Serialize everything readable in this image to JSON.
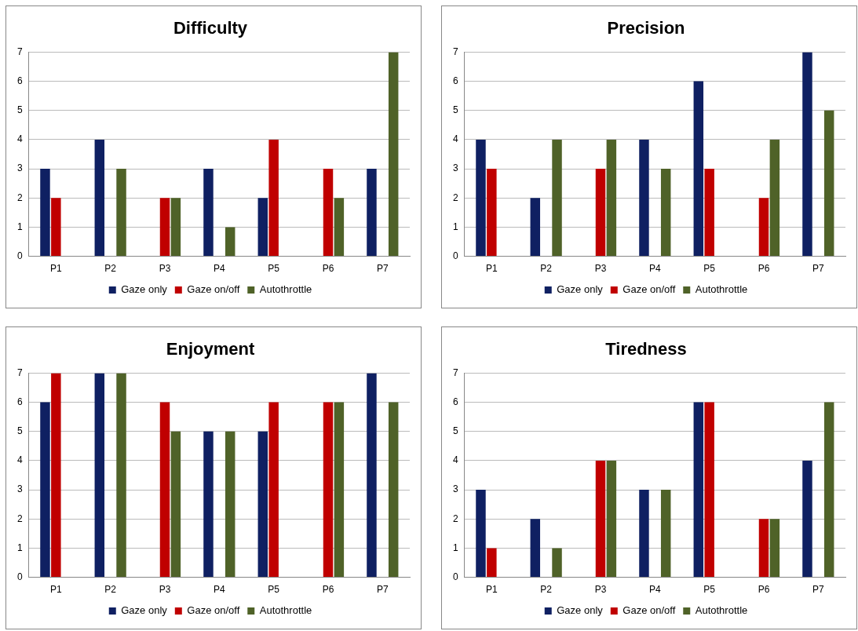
{
  "chart_data": [
    {
      "type": "bar",
      "title": "Difficulty",
      "categories": [
        "P1",
        "P2",
        "P3",
        "P4",
        "P5",
        "P6",
        "P7"
      ],
      "series": [
        {
          "name": "Gaze only",
          "color": "#0f2062",
          "values": [
            3,
            4,
            null,
            3,
            2,
            null,
            3
          ]
        },
        {
          "name": "Gaze on/off",
          "color": "#c00000",
          "values": [
            2,
            null,
            2,
            null,
            4,
            3,
            null
          ]
        },
        {
          "name": "Autothrottle",
          "color": "#4f6228",
          "values": [
            null,
            3,
            2,
            1,
            null,
            2,
            7
          ]
        }
      ],
      "ylim": [
        0,
        7
      ],
      "yticks": [
        0,
        1,
        2,
        3,
        4,
        5,
        6,
        7
      ],
      "grid": "y",
      "legend": "bottom"
    },
    {
      "type": "bar",
      "title": "Precision",
      "categories": [
        "P1",
        "P2",
        "P3",
        "P4",
        "P5",
        "P6",
        "P7"
      ],
      "series": [
        {
          "name": "Gaze only",
          "color": "#0f2062",
          "values": [
            4,
            2,
            null,
            4,
            6,
            null,
            7
          ]
        },
        {
          "name": "Gaze on/off",
          "color": "#c00000",
          "values": [
            3,
            null,
            3,
            null,
            3,
            2,
            null
          ]
        },
        {
          "name": "Autothrottle",
          "color": "#4f6228",
          "values": [
            null,
            4,
            4,
            3,
            null,
            4,
            5
          ]
        }
      ],
      "ylim": [
        0,
        7
      ],
      "yticks": [
        0,
        1,
        2,
        3,
        4,
        5,
        6,
        7
      ],
      "grid": "y",
      "legend": "bottom"
    },
    {
      "type": "bar",
      "title": "Enjoyment",
      "categories": [
        "P1",
        "P2",
        "P3",
        "P4",
        "P5",
        "P6",
        "P7"
      ],
      "series": [
        {
          "name": "Gaze only",
          "color": "#0f2062",
          "values": [
            6,
            7,
            null,
            5,
            5,
            null,
            7
          ]
        },
        {
          "name": "Gaze on/off",
          "color": "#c00000",
          "values": [
            7,
            null,
            6,
            null,
            6,
            6,
            null
          ]
        },
        {
          "name": "Autothrottle",
          "color": "#4f6228",
          "values": [
            null,
            7,
            5,
            5,
            null,
            6,
            6
          ]
        }
      ],
      "ylim": [
        0,
        7
      ],
      "yticks": [
        0,
        1,
        2,
        3,
        4,
        5,
        6,
        7
      ],
      "grid": "y",
      "legend": "bottom"
    },
    {
      "type": "bar",
      "title": "Tiredness",
      "categories": [
        "P1",
        "P2",
        "P3",
        "P4",
        "P5",
        "P6",
        "P7"
      ],
      "series": [
        {
          "name": "Gaze only",
          "color": "#0f2062",
          "values": [
            3,
            2,
            null,
            3,
            6,
            null,
            4
          ]
        },
        {
          "name": "Gaze on/off",
          "color": "#c00000",
          "values": [
            1,
            null,
            4,
            null,
            6,
            2,
            null
          ]
        },
        {
          "name": "Autothrottle",
          "color": "#4f6228",
          "values": [
            null,
            1,
            4,
            3,
            null,
            2,
            6
          ]
        }
      ],
      "ylim": [
        0,
        7
      ],
      "yticks": [
        0,
        1,
        2,
        3,
        4,
        5,
        6,
        7
      ],
      "grid": "y",
      "legend": "bottom"
    }
  ]
}
